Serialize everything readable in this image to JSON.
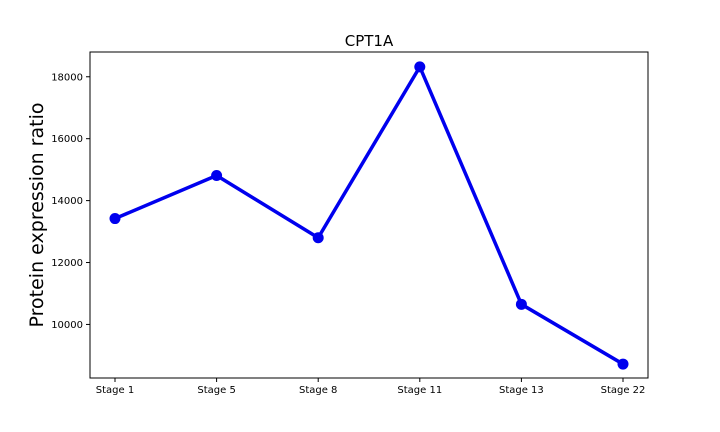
{
  "chart_data": {
    "type": "line",
    "title": "CPT1A",
    "xlabel": "",
    "ylabel": "Protein expression ratio",
    "categories": [
      "Stage 1",
      "Stage 5",
      "Stage 8",
      "Stage 11",
      "Stage 13",
      "Stage 22"
    ],
    "series": [
      {
        "values": [
          13420,
          14810,
          12800,
          18320,
          10650,
          8720
        ]
      }
    ],
    "ylim": [
      8270,
      18800
    ],
    "yticks": [
      10000,
      12000,
      14000,
      16000,
      18000
    ],
    "grid": false,
    "color": "#0000ee"
  }
}
